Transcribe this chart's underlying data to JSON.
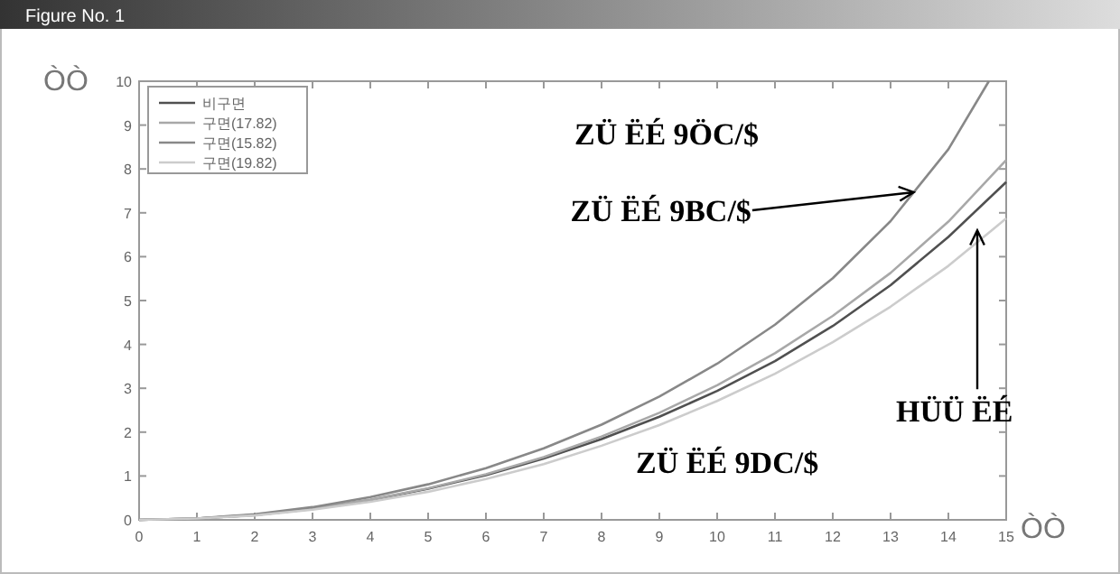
{
  "chart_data": {
    "type": "line",
    "title": "Figure No. 1",
    "xlabel": "ÒÒ",
    "ylabel": "ÒÒ",
    "x": [
      0,
      1,
      2,
      3,
      4,
      5,
      6,
      7,
      8,
      9,
      10,
      11,
      12,
      13,
      14,
      15
    ],
    "series": [
      {
        "name": "비구면",
        "color": "#505050",
        "values": [
          0,
          0.03,
          0.11,
          0.25,
          0.45,
          0.71,
          1.02,
          1.4,
          1.84,
          2.35,
          2.94,
          3.62,
          4.42,
          5.35,
          6.45,
          7.7
        ]
      },
      {
        "name": "구면(17.82)",
        "color": "#a8a8a8",
        "values": [
          0,
          0.03,
          0.11,
          0.25,
          0.46,
          0.72,
          1.04,
          1.43,
          1.9,
          2.44,
          3.07,
          3.8,
          4.65,
          5.63,
          6.8,
          8.2
        ]
      },
      {
        "name": "구면(15.82)",
        "color": "#888888",
        "x": [
          0,
          1,
          2,
          3,
          4,
          5,
          6,
          7,
          8,
          9,
          10,
          11,
          12,
          13,
          14,
          14.7
        ],
        "values": [
          0,
          0.03,
          0.13,
          0.29,
          0.52,
          0.81,
          1.18,
          1.63,
          2.17,
          2.81,
          3.56,
          4.45,
          5.51,
          6.81,
          8.45,
          10
        ]
      },
      {
        "name": "구면(19.82)",
        "color": "#cccccc",
        "values": [
          0,
          0.03,
          0.1,
          0.23,
          0.41,
          0.64,
          0.93,
          1.27,
          1.69,
          2.16,
          2.71,
          3.33,
          4.05,
          4.86,
          5.79,
          6.87
        ]
      }
    ],
    "xlim": [
      0,
      15
    ],
    "ylim": [
      0,
      10
    ],
    "xticks": [
      0,
      1,
      2,
      3,
      4,
      5,
      6,
      7,
      8,
      9,
      10,
      11,
      12,
      13,
      14,
      15
    ],
    "yticks": [
      0,
      1,
      2,
      3,
      4,
      5,
      6,
      7,
      8,
      9,
      10
    ],
    "legend": "top left",
    "grid": false,
    "marker": "none",
    "line_style": "solid",
    "annotations": [
      "ZÜ ËÉ 9ÖC/$",
      {
        "text": "ZÜ ËÉ 9BC/$",
        "x": 13.4,
        "y": 7.47
      },
      {
        "text": "HÜÜ ËÉ",
        "x": 14.5,
        "y": 6.6
      },
      "ZÜ ËÉ 9DC/$"
    ]
  }
}
